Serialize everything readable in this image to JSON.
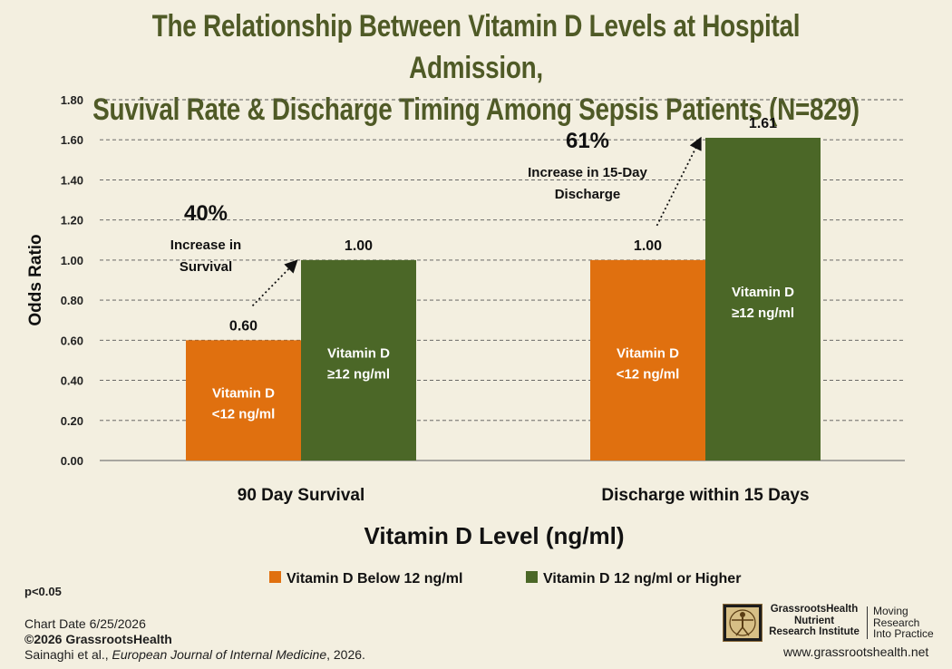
{
  "title_line1": "The Relationship Between Vitamin D Levels at Hospital Admission,",
  "title_line2": "Suvival Rate & Discharge Timing Among Sepsis Patients (N=829)",
  "chart_data": {
    "type": "bar",
    "title": "The Relationship Between Vitamin D Levels at Hospital Admission, Suvival Rate & Discharge Timing Among Sepsis Patients (N=829)",
    "categories": [
      "90 Day Survival",
      "Discharge within 15 Days"
    ],
    "series": [
      {
        "name": "Vitamin D Below 12 ng/ml",
        "values": [
          0.6,
          1.0
        ],
        "color": "#e0700f",
        "bar_label_line1": "Vitamin D",
        "bar_label_line2": "<12 ng/ml"
      },
      {
        "name": "Vitamin D 12 ng/ml or Higher",
        "values": [
          1.0,
          1.61
        ],
        "color": "#4b6727",
        "bar_label_line1": "Vitamin D",
        "bar_label_line2": "≥12 ng/ml"
      }
    ],
    "data_labels": [
      [
        "0.60",
        "1.00"
      ],
      [
        "1.00",
        "1.61"
      ]
    ],
    "ylabel": "Odds Ratio",
    "xlabel": "Vitamin D Level (ng/ml)",
    "ylim": [
      0,
      1.8
    ],
    "yticks": [
      "0.00",
      "0.20",
      "0.40",
      "0.60",
      "0.80",
      "1.00",
      "1.20",
      "1.40",
      "1.60",
      "1.80"
    ],
    "grid": true,
    "legend_position": "bottom",
    "annotations": [
      {
        "category": "90 Day Survival",
        "big": "40%",
        "line1": "Increase in",
        "line2": "Survival"
      },
      {
        "category": "Discharge within 15 Days",
        "big": "61%",
        "line1": "Increase in 15-Day",
        "line2": "Discharge"
      }
    ]
  },
  "footer": {
    "pvalue": "p<0.05",
    "chart_date": "Chart Date 6/25/2026",
    "copyright": "©2026 GrassrootsHealth",
    "citation_authors": "Sainaghi et al., ",
    "citation_journal": "European Journal of Internal Medicine",
    "citation_year": ", 2026.",
    "org_line1": "GrassrootsHealth",
    "org_line2": "Nutrient",
    "org_line3": "Research Institute",
    "tagline1": "Moving",
    "tagline2": "Research",
    "tagline3": "Into Practice",
    "website": "www.grassrootshealth.net"
  }
}
